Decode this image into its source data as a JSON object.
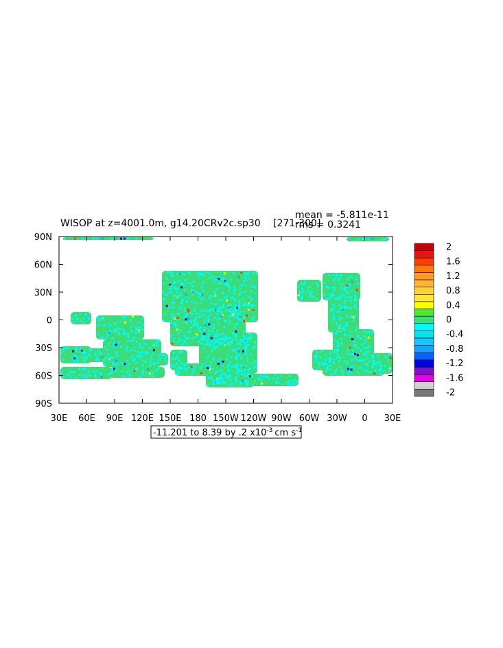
{
  "chart_data": {
    "type": "heatmap",
    "title": "WISOP at z=4001.0m, g14.20CRv2c.sp30",
    "title_suffix": "[271-300]",
    "stats": {
      "mean_label": "mean = -5.811e-11",
      "rms_label": "rms = 0.3241"
    },
    "xlim": [
      30,
      390
    ],
    "ylim": [
      -90,
      90
    ],
    "x_ticks": [
      {
        "value": 30,
        "label": "30E"
      },
      {
        "value": 60,
        "label": "60E"
      },
      {
        "value": 90,
        "label": "90E"
      },
      {
        "value": 120,
        "label": "120E"
      },
      {
        "value": 150,
        "label": "150E"
      },
      {
        "value": 180,
        "label": "180"
      },
      {
        "value": 210,
        "label": "150W"
      },
      {
        "value": 240,
        "label": "120W"
      },
      {
        "value": 270,
        "label": "90W"
      },
      {
        "value": 300,
        "label": "60W"
      },
      {
        "value": 330,
        "label": "30W"
      },
      {
        "value": 360,
        "label": "0"
      },
      {
        "value": 390,
        "label": "30E"
      }
    ],
    "y_ticks": [
      {
        "value": 90,
        "label": "90N"
      },
      {
        "value": 60,
        "label": "60N"
      },
      {
        "value": 30,
        "label": "30N"
      },
      {
        "value": 0,
        "label": "0"
      },
      {
        "value": -30,
        "label": "30S"
      },
      {
        "value": -60,
        "label": "60S"
      },
      {
        "value": -90,
        "label": "90S"
      }
    ],
    "contour_info": "-11.201 to 8.39 by .2 x10",
    "contour_info_exponent": "-3",
    "contour_info_units": "cm s",
    "contour_info_units_exponent": "-1",
    "colorbar": {
      "levels": [
        {
          "label": "2",
          "color": "#c80000"
        },
        {
          "label": "",
          "color": "#e61414"
        },
        {
          "label": "1.6",
          "color": "#ff3c00"
        },
        {
          "label": "",
          "color": "#ff7800"
        },
        {
          "label": "1.2",
          "color": "#ff9a28"
        },
        {
          "label": "",
          "color": "#ffb432"
        },
        {
          "label": "0.8",
          "color": "#ffd232"
        },
        {
          "label": "",
          "color": "#ffe632"
        },
        {
          "label": "0.4",
          "color": "#ffff00"
        },
        {
          "label": "",
          "color": "#50e632"
        },
        {
          "label": "0",
          "color": "#3cdc78"
        },
        {
          "label": "",
          "color": "#00faff"
        },
        {
          "label": "-0.4",
          "color": "#00e6f0"
        },
        {
          "label": "",
          "color": "#14c8ff"
        },
        {
          "label": "-0.8",
          "color": "#1ea0ff"
        },
        {
          "label": "",
          "color": "#0064ff"
        },
        {
          "label": "-1.2",
          "color": "#0000e6"
        },
        {
          "label": "",
          "color": "#7814c8"
        },
        {
          "label": "-1.6",
          "color": "#e600e6"
        },
        {
          "label": "",
          "color": "#d2d2d2"
        },
        {
          "label": "-2",
          "color": "#787878"
        }
      ]
    },
    "field_colors": {
      "dominant": "#3cdc78",
      "secondary": "#00faff",
      "speckle": [
        "#ffff00",
        "#50e632",
        "#1ea0ff",
        "#ff3c00",
        "#0000e6"
      ]
    }
  }
}
